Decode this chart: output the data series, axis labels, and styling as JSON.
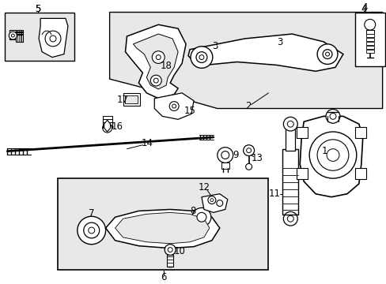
{
  "bg_color": "#ffffff",
  "shaded_bg": "#e8e8e8",
  "figsize": [
    4.89,
    3.6
  ],
  "dpi": 100,
  "lw_thin": 0.7,
  "lw_med": 1.0,
  "lw_thick": 1.3,
  "label_fs": 8.5
}
